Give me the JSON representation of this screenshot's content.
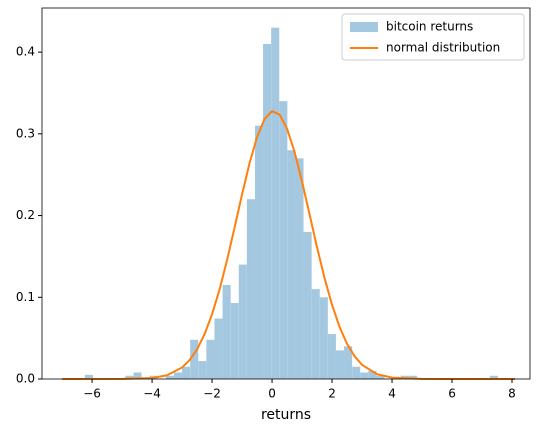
{
  "chart_data": {
    "type": "histogram",
    "xlabel": "returns",
    "xlim": [
      -7.67,
      8.6
    ],
    "ylim": [
      0,
      0.454
    ],
    "xticks": [
      {
        "value": -6,
        "label": "−6"
      },
      {
        "value": -4,
        "label": "−4"
      },
      {
        "value": -2,
        "label": "−2"
      },
      0,
      2,
      4,
      6,
      8
    ],
    "yticks": [
      {
        "value": 0,
        "label": "0.0"
      },
      {
        "value": 0.1,
        "label": "0.1"
      },
      {
        "value": 0.2,
        "label": "0.2"
      },
      {
        "value": 0.3,
        "label": "0.3"
      },
      {
        "value": 0.4,
        "label": "0.4"
      }
    ],
    "legend": "upper right",
    "series": [
      {
        "type": "histogram",
        "name": "bitcoin returns",
        "color": "#a5c8e1",
        "bins": [
          -6.24,
          -5.97,
          -5.7,
          -5.43,
          -5.16,
          -4.89,
          -4.62,
          -4.35,
          -4.08,
          -3.81,
          -3.54,
          -3.27,
          -3.0,
          -2.73,
          -2.46,
          -2.19,
          -1.92,
          -1.65,
          -1.38,
          -1.11,
          -0.84,
          -0.57,
          -0.3,
          -0.03,
          0.24,
          0.51,
          0.78,
          1.05,
          1.32,
          1.59,
          1.86,
          2.13,
          2.4,
          2.67,
          2.94,
          3.21,
          3.48,
          3.75,
          4.02,
          4.29,
          4.56,
          4.83,
          5.1,
          5.37,
          5.64,
          5.91,
          6.18,
          6.45,
          6.72,
          6.99,
          7.26,
          7.53
        ],
        "values": [
          0.005,
          0,
          0,
          0,
          0,
          0.004,
          0.008,
          0,
          0.004,
          0,
          0.004,
          0.008,
          0.015,
          0.048,
          0.022,
          0.048,
          0.074,
          0.115,
          0.093,
          0.14,
          0.22,
          0.31,
          0.41,
          0.43,
          0.34,
          0.28,
          0.27,
          0.18,
          0.11,
          0.1,
          0.055,
          0.035,
          0.04,
          0.015,
          0.008,
          0.01,
          0.004,
          0,
          0,
          0.004,
          0.004,
          0,
          0,
          0,
          0,
          0,
          0,
          0,
          0,
          0,
          0.004
        ]
      },
      {
        "type": "line",
        "name": "normal distribution",
        "color": "#ff7f0e",
        "x": [
          -7,
          -5,
          -4,
          -3.5,
          -3,
          -2.75,
          -2.5,
          -2.25,
          -2,
          -1.75,
          -1.5,
          -1.25,
          -1,
          -0.75,
          -0.5,
          -0.25,
          0,
          0.25,
          0.5,
          0.75,
          1,
          1.25,
          1.5,
          1.75,
          2,
          2.25,
          2.5,
          2.75,
          3,
          3.5,
          4,
          5,
          6,
          8.1
        ],
        "values": [
          0,
          0.0001,
          0.0013,
          0.0046,
          0.0141,
          0.0232,
          0.0363,
          0.0548,
          0.0793,
          0.1096,
          0.1455,
          0.1852,
          0.2259,
          0.2642,
          0.2961,
          0.3182,
          0.3277,
          0.3236,
          0.3063,
          0.2779,
          0.2417,
          0.2016,
          0.1611,
          0.1235,
          0.0907,
          0.0638,
          0.0431,
          0.0279,
          0.0173,
          0.0059,
          0.0017,
          0.0001,
          0,
          0
        ]
      }
    ]
  }
}
